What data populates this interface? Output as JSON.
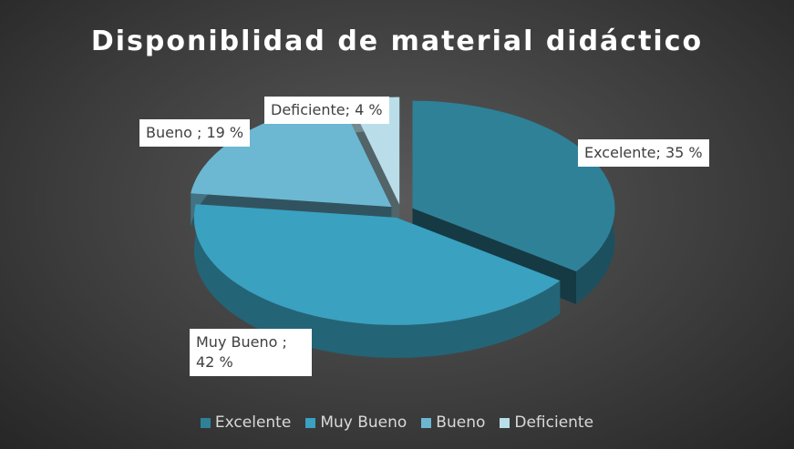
{
  "chart_data": {
    "type": "pie",
    "title": "Disponiblidad de material didáctico",
    "categories": [
      "Excelente",
      "Muy Bueno",
      "Bueno",
      "Deficiente"
    ],
    "values": [
      35,
      42,
      19,
      4
    ],
    "value_labels": [
      "Excelente; 35 %",
      "Muy Bueno ; 42 %",
      "Bueno ; 19 %",
      "Deficiente; 4 %"
    ],
    "colors": [
      "#2f8198",
      "#3aa1c0",
      "#6cb8d2",
      "#b9dee9"
    ],
    "legend": "bottom"
  }
}
